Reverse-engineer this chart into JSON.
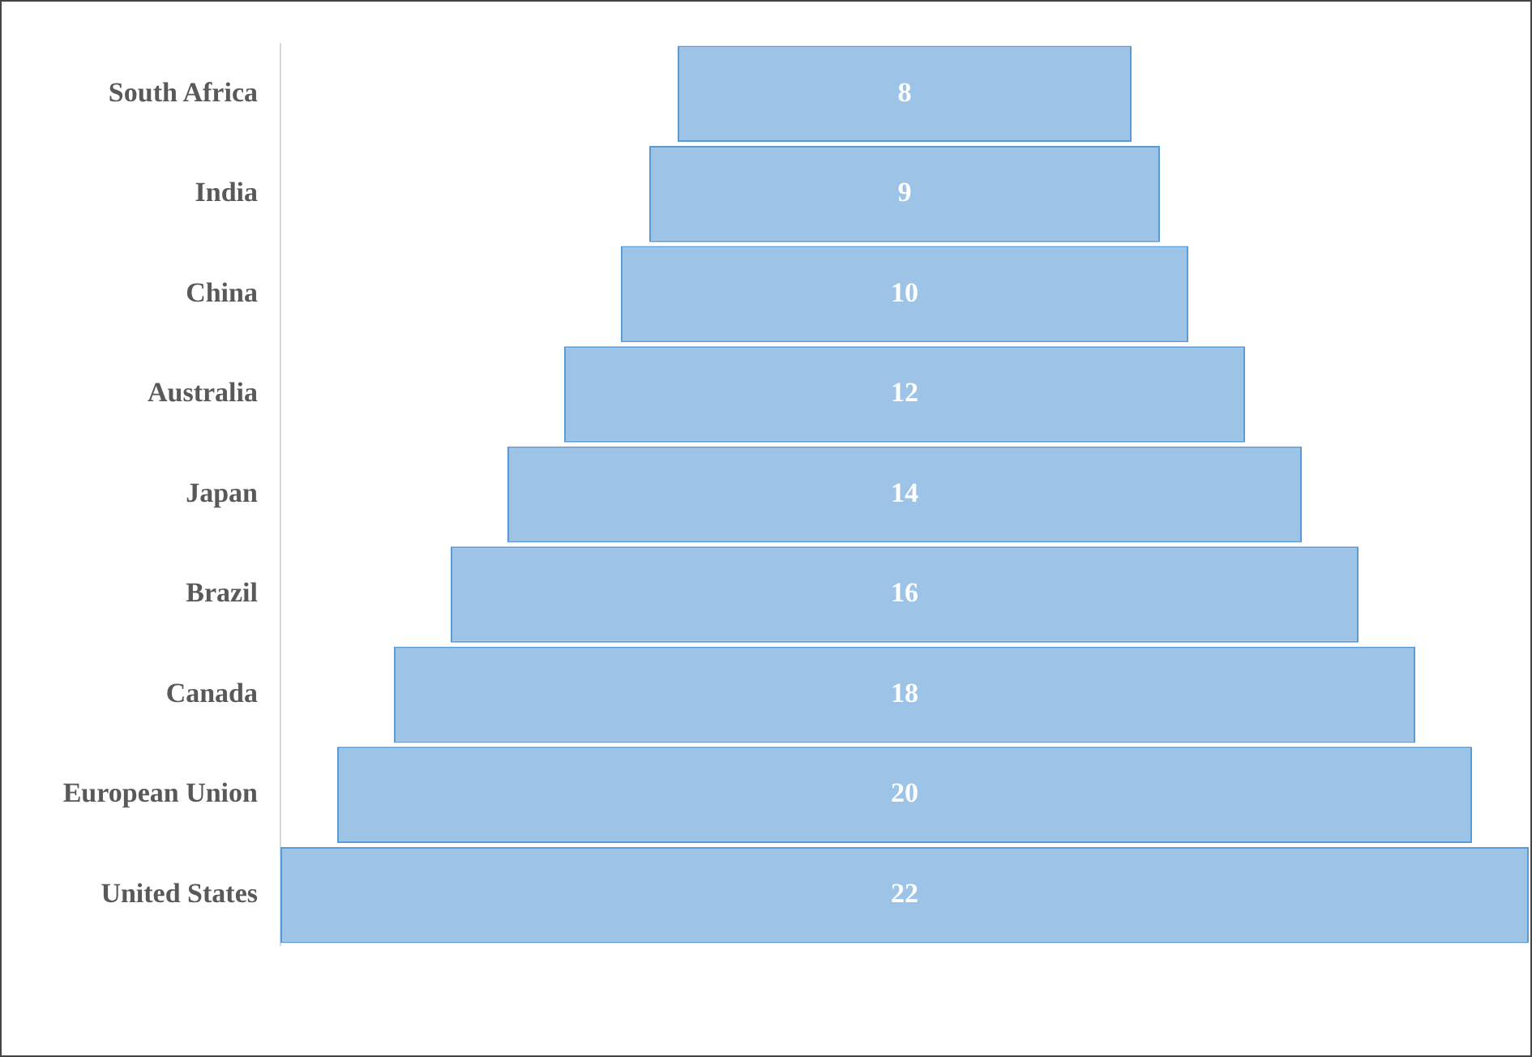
{
  "chart_data": {
    "type": "other",
    "categories": [
      "South Africa",
      "India",
      "China",
      "Australia",
      "Japan",
      "Brazil",
      "Canada",
      "European Union",
      "United States"
    ],
    "values": [
      8,
      9,
      10,
      12,
      14,
      16,
      18,
      20,
      22
    ],
    "color": "#9dc3e6",
    "data_labels": true,
    "legend": false
  }
}
